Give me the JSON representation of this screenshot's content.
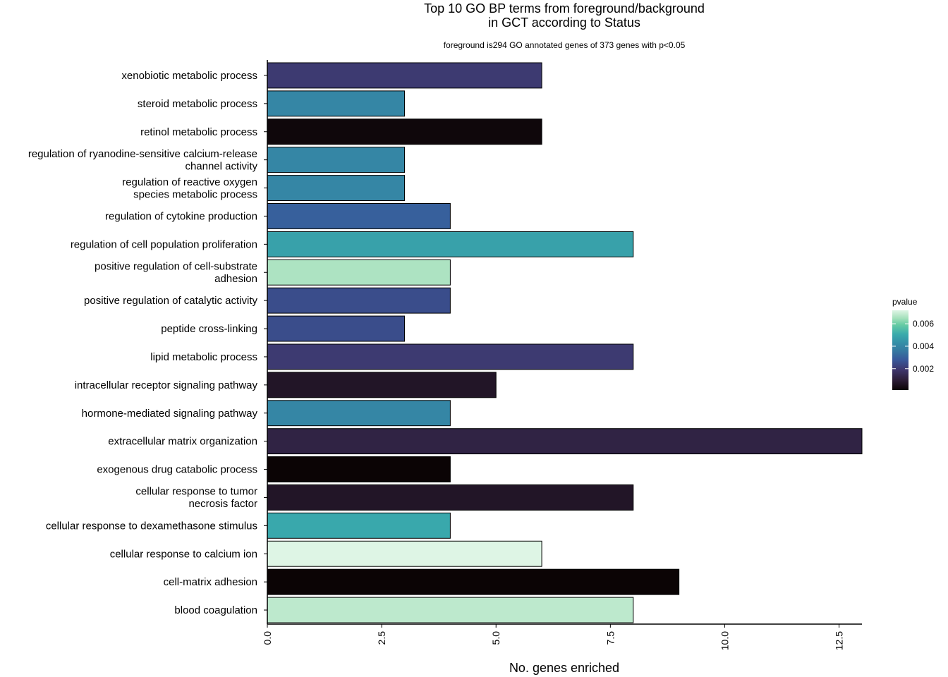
{
  "chart_data": {
    "type": "bar",
    "orientation": "horizontal",
    "title": "Top 10 GO BP terms from foreground/background\nin GCT according to Status",
    "subtitle": "foreground is294 GO annotated genes of 373 genes with p<0.05",
    "xlabel": "No. genes enriched",
    "ylabel": "",
    "xlim": [
      0,
      13
    ],
    "x_ticks": [
      "0.0",
      "2.5",
      "5.0",
      "7.5",
      "10.0",
      "12.5"
    ],
    "grid": false,
    "legend": {
      "title": "pvalue",
      "position": "right",
      "ticks": [
        "0.006",
        "0.004",
        "0.002"
      ],
      "range": [
        0.0001,
        0.0072
      ]
    },
    "categories": [
      "xenobiotic metabolic process",
      "steroid metabolic process",
      "retinol metabolic process",
      "regulation of ryanodine-sensitive calcium-release\nchannel activity",
      "regulation of reactive oxygen\nspecies metabolic process",
      "regulation of cytokine production",
      "regulation of cell population proliferation",
      "positive regulation of cell-substrate\nadhesion",
      "positive regulation of catalytic activity",
      "peptide cross-linking",
      "lipid metabolic process",
      "intracellular receptor signaling pathway",
      "hormone-mediated signaling pathway",
      "extracellular matrix organization",
      "exogenous drug catabolic process",
      "cellular response to tumor\nnecrosis factor",
      "cellular response to dexamethasone stimulus",
      "cellular response to calcium ion",
      "cell-matrix adhesion",
      "blood coagulation"
    ],
    "values": [
      6,
      3,
      6,
      3,
      3,
      4,
      8,
      4,
      4,
      3,
      8,
      5,
      4,
      13,
      4,
      8,
      4,
      6,
      9,
      8
    ],
    "pvalues": [
      0.002,
      0.004,
      0.0002,
      0.004,
      0.004,
      0.003,
      0.0048,
      0.0066,
      0.0025,
      0.0025,
      0.002,
      0.0007,
      0.004,
      0.0012,
      0.0001,
      0.0007,
      0.005,
      0.0072,
      0.0001,
      0.0068
    ]
  }
}
